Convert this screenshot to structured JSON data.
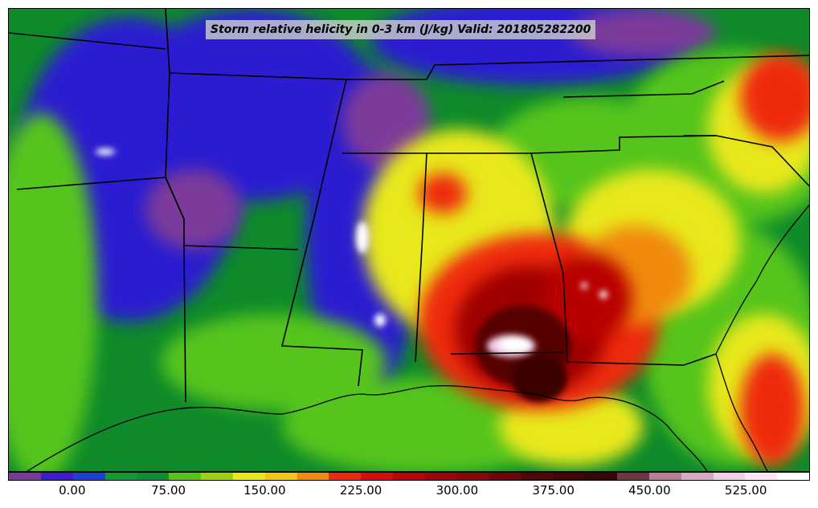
{
  "title": "Storm relative helicity in 0-3 km (J/kg) Valid: 201805282200",
  "units": "J/kg",
  "valid_time": "201805282200",
  "colorbar": {
    "min": -50,
    "max": 575,
    "step": 25,
    "tick_labels": [
      "0.00",
      "75.00",
      "150.00",
      "225.00",
      "300.00",
      "375.00",
      "450.00",
      "525.00"
    ],
    "tick_values": [
      0,
      75,
      150,
      225,
      300,
      375,
      450,
      525
    ],
    "colors": [
      "#7b3a9a",
      "#3a1ecf",
      "#1c3fd6",
      "#129a2e",
      "#0c8f30",
      "#55c41b",
      "#9ad313",
      "#e8e81a",
      "#f7c510",
      "#f08a10",
      "#ee2a0c",
      "#d80a0a",
      "#b80505",
      "#9e0606",
      "#850909",
      "#6b0707",
      "#560505",
      "#460404",
      "#3a0505",
      "#6e3542",
      "#b87e96",
      "#d8a8c8",
      "#f0cfe8",
      "#fae6f6",
      "#ffffff"
    ]
  },
  "map": {
    "region": "Southeastern United States",
    "features": [
      "state boundaries",
      "coastline",
      "lakes"
    ]
  }
}
